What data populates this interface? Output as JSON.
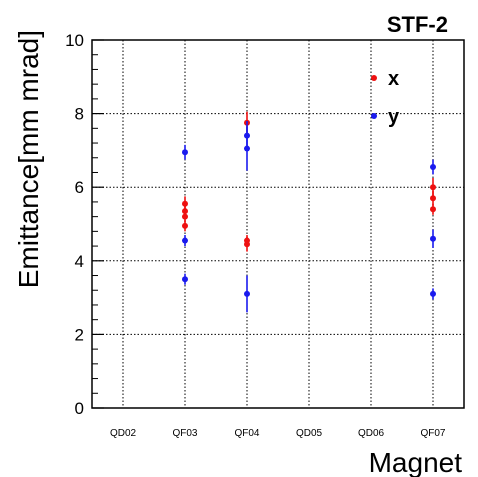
{
  "chart_data": {
    "type": "scatter",
    "title": "STF-2",
    "xlabel": "Magnet",
    "ylabel": "Emittance[mm mrad]",
    "categories": [
      "QD02",
      "QF03",
      "QF04",
      "QD05",
      "QD06",
      "QF07"
    ],
    "ylim": [
      0,
      10
    ],
    "yticks": [
      "0",
      "2",
      "4",
      "6",
      "8",
      "10"
    ],
    "grid": true,
    "legend_position": "top-right",
    "series": [
      {
        "name": "x",
        "color": "#ee1111",
        "points": [
          {
            "x": "QF03",
            "y": 4.95,
            "err": 0.15
          },
          {
            "x": "QF03",
            "y": 5.2,
            "err": 0.15
          },
          {
            "x": "QF03",
            "y": 5.35,
            "err": 0.15
          },
          {
            "x": "QF03",
            "y": 5.55,
            "err": 0.2
          },
          {
            "x": "QF04",
            "y": 4.45,
            "err": 0.2
          },
          {
            "x": "QF04",
            "y": 4.55,
            "err": 0.15
          },
          {
            "x": "QF04",
            "y": 7.75,
            "err": 0.3
          },
          {
            "x": "QF07",
            "y": 5.4,
            "err": 0.15
          },
          {
            "x": "QF07",
            "y": 5.7,
            "err": 0.2
          },
          {
            "x": "QF07",
            "y": 6.0,
            "err": 0.25
          }
        ]
      },
      {
        "name": "y",
        "color": "#1a1aee",
        "points": [
          {
            "x": "QF03",
            "y": 3.5,
            "err": 0.15
          },
          {
            "x": "QF03",
            "y": 4.55,
            "err": 0.15
          },
          {
            "x": "QF03",
            "y": 6.95,
            "err": 0.2
          },
          {
            "x": "QF04",
            "y": 3.1,
            "err": 0.5
          },
          {
            "x": "QF04",
            "y": 7.05,
            "err": 0.6
          },
          {
            "x": "QF04",
            "y": 7.4,
            "err": 0.4
          },
          {
            "x": "QF07",
            "y": 3.1,
            "err": 0.15
          },
          {
            "x": "QF07",
            "y": 4.6,
            "err": 0.25
          },
          {
            "x": "QF07",
            "y": 6.55,
            "err": 0.2
          }
        ]
      }
    ]
  }
}
